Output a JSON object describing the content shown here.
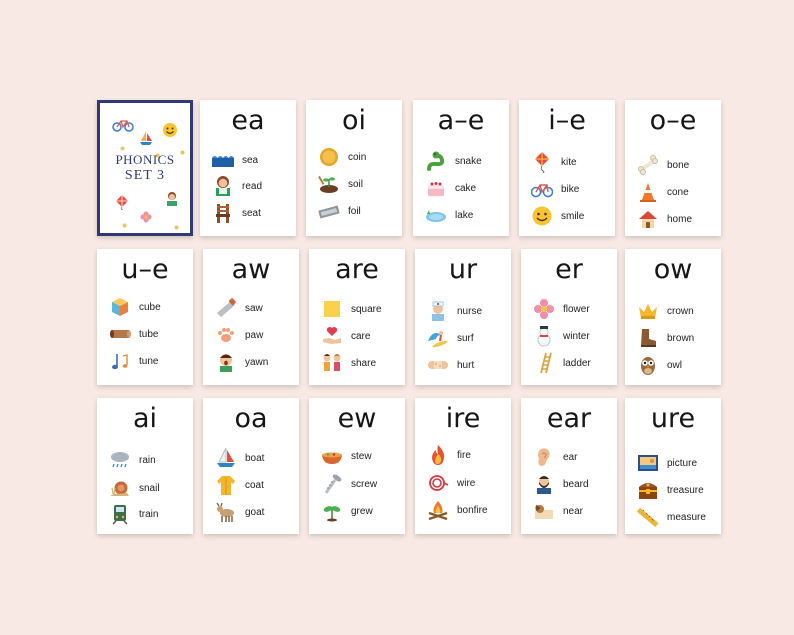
{
  "cover": {
    "title": "PHONICS",
    "subtitle": "SET 3"
  },
  "cards": [
    {
      "sound": "ea",
      "items": [
        {
          "word": "sea",
          "icon": "sea-waves-icon"
        },
        {
          "word": "read",
          "icon": "girl-reading-icon"
        },
        {
          "word": "seat",
          "icon": "chair-icon"
        }
      ]
    },
    {
      "sound": "oi",
      "items": [
        {
          "word": "coin",
          "icon": "coin-icon"
        },
        {
          "word": "soil",
          "icon": "soil-plant-icon"
        },
        {
          "word": "foil",
          "icon": "foil-roll-icon"
        }
      ]
    },
    {
      "sound": "a–e",
      "items": [
        {
          "word": "snake",
          "icon": "snake-icon"
        },
        {
          "word": "cake",
          "icon": "cake-icon"
        },
        {
          "word": "lake",
          "icon": "lake-icon"
        }
      ]
    },
    {
      "sound": "i–e",
      "items": [
        {
          "word": "kite",
          "icon": "kite-icon"
        },
        {
          "word": "bike",
          "icon": "bike-icon"
        },
        {
          "word": "smile",
          "icon": "smile-icon"
        }
      ]
    },
    {
      "sound": "o–e",
      "items": [
        {
          "word": "bone",
          "icon": "bone-icon"
        },
        {
          "word": "cone",
          "icon": "traffic-cone-icon"
        },
        {
          "word": "home",
          "icon": "house-icon"
        }
      ]
    },
    {
      "sound": "u–e",
      "items": [
        {
          "word": "cube",
          "icon": "cube-icon"
        },
        {
          "word": "tube",
          "icon": "tube-icon"
        },
        {
          "word": "tune",
          "icon": "music-note-icon"
        }
      ]
    },
    {
      "sound": "aw",
      "items": [
        {
          "word": "saw",
          "icon": "saw-icon"
        },
        {
          "word": "paw",
          "icon": "paw-icon"
        },
        {
          "word": "yawn",
          "icon": "yawning-boy-icon"
        }
      ]
    },
    {
      "sound": "are",
      "items": [
        {
          "word": "square",
          "icon": "square-icon"
        },
        {
          "word": "care",
          "icon": "heart-hand-icon"
        },
        {
          "word": "share",
          "icon": "two-kids-icon"
        }
      ]
    },
    {
      "sound": "ur",
      "items": [
        {
          "word": "nurse",
          "icon": "nurse-icon"
        },
        {
          "word": "surf",
          "icon": "surfer-icon"
        },
        {
          "word": "hurt",
          "icon": "bandage-icon"
        }
      ]
    },
    {
      "sound": "er",
      "items": [
        {
          "word": "flower",
          "icon": "flower-icon"
        },
        {
          "word": "winter",
          "icon": "snowman-icon"
        },
        {
          "word": "ladder",
          "icon": "ladder-icon"
        }
      ]
    },
    {
      "sound": "ow",
      "items": [
        {
          "word": "crown",
          "icon": "crown-icon"
        },
        {
          "word": "brown",
          "icon": "brown-boot-icon"
        },
        {
          "word": "owl",
          "icon": "owl-icon"
        }
      ]
    },
    {
      "sound": "ai",
      "items": [
        {
          "word": "rain",
          "icon": "rain-cloud-icon"
        },
        {
          "word": "snail",
          "icon": "snail-icon"
        },
        {
          "word": "train",
          "icon": "train-icon"
        }
      ]
    },
    {
      "sound": "oa",
      "items": [
        {
          "word": "boat",
          "icon": "sailboat-icon"
        },
        {
          "word": "coat",
          "icon": "coat-icon"
        },
        {
          "word": "goat",
          "icon": "goat-icon"
        }
      ]
    },
    {
      "sound": "ew",
      "items": [
        {
          "word": "stew",
          "icon": "stew-bowl-icon"
        },
        {
          "word": "screw",
          "icon": "screw-icon"
        },
        {
          "word": "grew",
          "icon": "sprout-icon"
        }
      ]
    },
    {
      "sound": "ire",
      "items": [
        {
          "word": "fire",
          "icon": "fire-icon"
        },
        {
          "word": "wire",
          "icon": "wire-icon"
        },
        {
          "word": "bonfire",
          "icon": "bonfire-icon"
        }
      ]
    },
    {
      "sound": "ear",
      "items": [
        {
          "word": "ear",
          "icon": "ear-icon"
        },
        {
          "word": "beard",
          "icon": "bearded-man-icon"
        },
        {
          "word": "near",
          "icon": "dog-near-icon"
        }
      ]
    },
    {
      "sound": "ure",
      "items": [
        {
          "word": "picture",
          "icon": "picture-icon"
        },
        {
          "word": "treasure",
          "icon": "treasure-chest-icon"
        },
        {
          "word": "measure",
          "icon": "ruler-icon"
        }
      ]
    }
  ]
}
